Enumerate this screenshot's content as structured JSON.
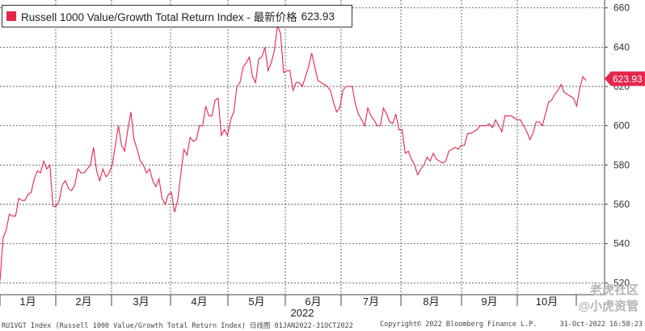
{
  "legend": {
    "label": "Russell 1000 Value/Growth Total Return Index - 最新价格",
    "value": "623.93",
    "color": "#e4264c"
  },
  "footer": {
    "left": "RU1VGT Index (Russell 1000 Value/Growth Total Return Index)  日线图 01JAN2022-31OCT2022",
    "center": "Copyright© 2022 Bloomberg Finance L.P.",
    "right": "31-Oct-2022 16:58:23"
  },
  "watermark": {
    "line1": "老虎社区",
    "line2": "@小虎资管"
  },
  "chart_data": {
    "type": "line",
    "series": [
      {
        "values": [
          521,
          543,
          547,
          555,
          554,
          554,
          563,
          562,
          562,
          565,
          566,
          573,
          577,
          576,
          582,
          578,
          580,
          559,
          559,
          562,
          570,
          572,
          568,
          567,
          570,
          578,
          576,
          576,
          578,
          580,
          589,
          577,
          572,
          578,
          574,
          576,
          580,
          590,
          600,
          590,
          587,
          598,
          607,
          593,
          588,
          582,
          580,
          576,
          578,
          572,
          569,
          573,
          563,
          560,
          565,
          566,
          556,
          562,
          575,
          588,
          585,
          594,
          592,
          593,
          600,
          600,
          610,
          605,
          605,
          613,
          614,
          595,
          598,
          595,
          603,
          607,
          620,
          622,
          630,
          632,
          635,
          625,
          622,
          634,
          635,
          640,
          628,
          632,
          638,
          651,
          647,
          627,
          628,
          628,
          618,
          622,
          622,
          620,
          625,
          630,
          637,
          630,
          623,
          622,
          621,
          620,
          618,
          612,
          607,
          609,
          618,
          620,
          620,
          620,
          611,
          606,
          603,
          600,
          609,
          605,
          603,
          600,
          600,
          609,
          606,
          602,
          601,
          606,
          598,
          598,
          586,
          587,
          583,
          580,
          575,
          578,
          580,
          584,
          582,
          586,
          583,
          582,
          581,
          582,
          587,
          588,
          589,
          588,
          590,
          590,
          596,
          596,
          597,
          598,
          600,
          600,
          600,
          601,
          599,
          603,
          600,
          597,
          605,
          605,
          605,
          604,
          603,
          603,
          600,
          597,
          593,
          596,
          602,
          602,
          600,
          606,
          612,
          613,
          616,
          618,
          621,
          617,
          616,
          615,
          614,
          610,
          619,
          625,
          623
        ],
        "color": "#e4264c",
        "last": 623.93
      }
    ],
    "ylim": [
      514,
      664
    ],
    "y_ticks": [
      520,
      540,
      560,
      580,
      600,
      620,
      640,
      660
    ],
    "x_tick_labels": [
      "1月",
      "2月",
      "3月",
      "4月",
      "5月",
      "6月",
      "7月",
      "8月",
      "9月",
      "10月"
    ],
    "year_label": "2022",
    "grid": true,
    "y_axis_side": "right"
  }
}
